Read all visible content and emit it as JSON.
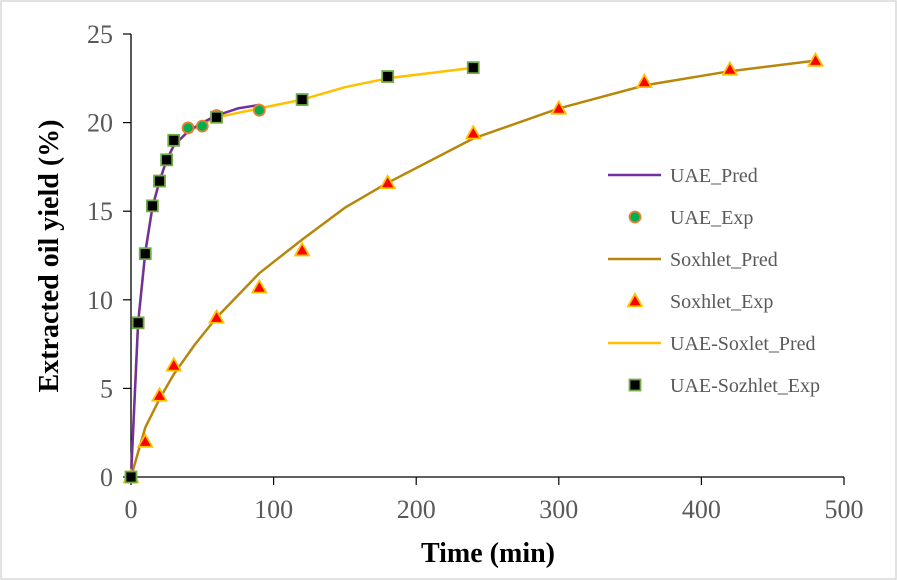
{
  "chart_data": {
    "type": "scatter",
    "xlabel": "Time (min)",
    "ylabel": "Extracted oil yield (%)",
    "xlim": [
      0,
      500
    ],
    "ylim": [
      0,
      25
    ],
    "x_ticks": [
      0,
      100,
      200,
      300,
      400,
      500
    ],
    "y_ticks": [
      0,
      5,
      10,
      15,
      20,
      25
    ],
    "grid": false,
    "legend_position": "right",
    "colors": {
      "uae_pred": "#7030a0",
      "uae_exp_fill": "#00b050",
      "uae_exp_edge": "#ed7d31",
      "soxhlet_pred": "#b8860b",
      "soxhlet_exp_fill": "#ff0000",
      "soxhlet_exp_edge": "#ffc000",
      "uae_soxlet_pred": "#ffc000",
      "uae_sozhlet_exp_fill": "#000000",
      "uae_sozhlet_exp_edge": "#70ad47",
      "axis": "#000000",
      "frame": "#d9d9d9"
    },
    "series": [
      {
        "name": "UAE_Pred",
        "kind": "line",
        "x": [
          0,
          5,
          10,
          15,
          20,
          25,
          30,
          40,
          50,
          60,
          75,
          90
        ],
        "y": [
          0,
          8.7,
          12.7,
          15.2,
          16.7,
          17.9,
          18.7,
          19.5,
          20.0,
          20.4,
          20.8,
          21.0
        ]
      },
      {
        "name": "UAE_Exp",
        "kind": "marker",
        "marker": "circle",
        "x": [
          0,
          5,
          10,
          15,
          20,
          25,
          30,
          40,
          50,
          60,
          90
        ],
        "y": [
          0,
          8.7,
          12.6,
          15.3,
          16.7,
          17.9,
          19.0,
          19.7,
          19.8,
          20.4,
          20.7
        ]
      },
      {
        "name": "Soxhlet_Pred",
        "kind": "line",
        "x": [
          0,
          10,
          20,
          30,
          45,
          60,
          90,
          120,
          150,
          180,
          240,
          300,
          360,
          420,
          480
        ],
        "y": [
          0,
          2.8,
          4.4,
          5.8,
          7.5,
          9.0,
          11.5,
          13.4,
          15.2,
          16.6,
          19.1,
          20.8,
          22.1,
          22.9,
          23.5
        ]
      },
      {
        "name": "Soxhlet_Exp",
        "kind": "marker",
        "marker": "triangle",
        "x": [
          0,
          10,
          20,
          30,
          60,
          90,
          120,
          180,
          240,
          300,
          360,
          420,
          480
        ],
        "y": [
          0,
          2.0,
          4.6,
          6.3,
          9.0,
          10.7,
          12.8,
          16.6,
          19.4,
          20.8,
          22.3,
          23.0,
          23.5
        ]
      },
      {
        "name": "UAE-Soxlet_Pred",
        "kind": "line",
        "x": [
          0,
          5,
          10,
          15,
          20,
          25,
          30,
          40,
          60,
          90,
          120,
          150,
          180,
          210,
          240
        ],
        "y": [
          0,
          8.7,
          12.6,
          15.3,
          16.7,
          17.9,
          18.7,
          19.5,
          20.3,
          20.8,
          21.3,
          22.0,
          22.5,
          22.8,
          23.1
        ]
      },
      {
        "name": "UAE-Sozhlet_Exp",
        "kind": "marker",
        "marker": "square",
        "x": [
          0,
          5,
          10,
          15,
          20,
          25,
          30,
          60,
          120,
          180,
          240
        ],
        "y": [
          0,
          8.7,
          12.6,
          15.3,
          16.7,
          17.9,
          19.0,
          20.3,
          21.3,
          22.6,
          23.1
        ]
      }
    ]
  }
}
